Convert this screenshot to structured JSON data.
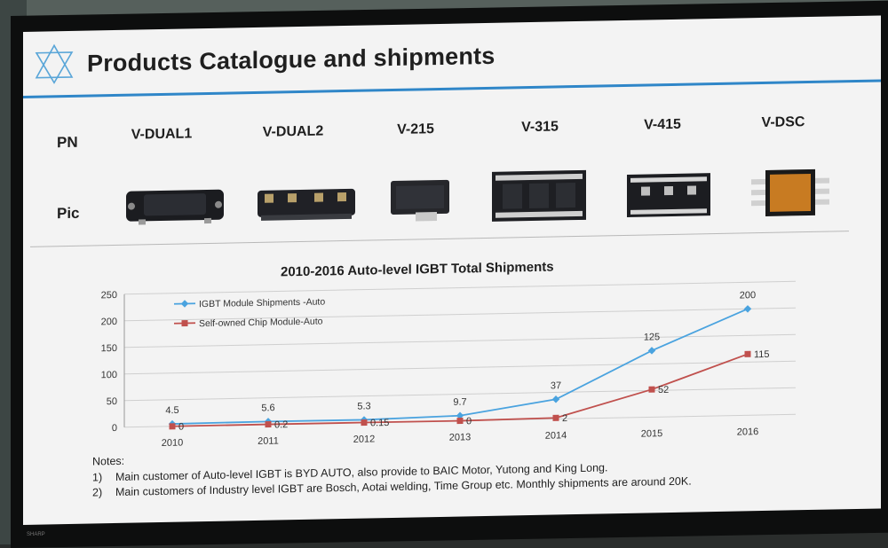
{
  "slide": {
    "title": "Products Catalogue and shipments",
    "accent_color": "#2f86c8",
    "logo_icon": "triangle-star-logo-icon"
  },
  "catalogue": {
    "row_labels": {
      "pn": "PN",
      "pic": "Pic"
    },
    "products": [
      {
        "pn": "V-DUAL1",
        "icon": "igbt-module-icon"
      },
      {
        "pn": "V-DUAL2",
        "icon": "igbt-module-icon"
      },
      {
        "pn": "V-215",
        "icon": "igbt-module-icon"
      },
      {
        "pn": "V-315",
        "icon": "igbt-module-icon"
      },
      {
        "pn": "V-415",
        "icon": "igbt-module-icon"
      },
      {
        "pn": "V-DSC",
        "icon": "dsc-chip-icon"
      }
    ]
  },
  "chart_data": {
    "type": "line",
    "title": "2010-2016 Auto-level IGBT Total Shipments",
    "xlabel": "",
    "ylabel": "",
    "categories": [
      "2010",
      "2011",
      "2012",
      "2013",
      "2014",
      "2015",
      "2016"
    ],
    "ylim": [
      0,
      250
    ],
    "yticks": [
      "0",
      "50",
      "100",
      "150",
      "200",
      "250"
    ],
    "grid": true,
    "legend_position": "top-left",
    "series": [
      {
        "name": "IGBT Module Shipments -Auto",
        "color": "#4aa3df",
        "marker": "diamond",
        "values": [
          4.5,
          5.6,
          5.3,
          9.7,
          37,
          125,
          200
        ],
        "labels": [
          "4.5",
          "5.6",
          "5.3",
          "9.7",
          "37",
          "125",
          "200"
        ]
      },
      {
        "name": "Self-owned Chip Module-Auto",
        "color": "#c0504d",
        "marker": "square",
        "values": [
          0,
          0.2,
          0.15,
          0,
          2,
          52,
          115
        ],
        "labels": [
          "0",
          "0.2",
          "0.15",
          "0",
          "2",
          "52",
          "115"
        ]
      }
    ]
  },
  "notes": {
    "heading": "Notes:",
    "items": [
      {
        "num": "1)",
        "text": "Main customer of Auto-level IGBT is BYD AUTO, also provide to BAIC Motor, Yutong and King Long."
      },
      {
        "num": "2)",
        "text": "Main customers of Industry level IGBT are Bosch, Aotai welding, Time Group etc. Monthly shipments are around 20K."
      }
    ]
  },
  "monitor": {
    "brand": "SHARP"
  }
}
